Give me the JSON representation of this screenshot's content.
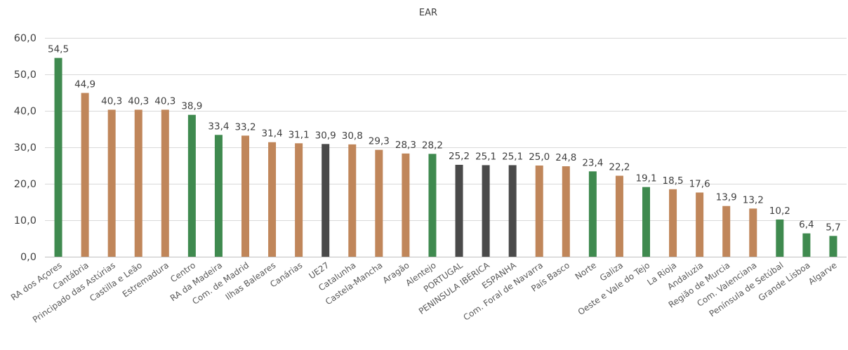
{
  "chart_data": {
    "type": "bar",
    "title": "EAR",
    "xlabel": "",
    "ylabel": "",
    "ylim": [
      0,
      60
    ],
    "yticks": [
      "0,0",
      "10,0",
      "20,0",
      "30,0",
      "40,0",
      "50,0",
      "60,0"
    ],
    "grid": true,
    "legend": "none",
    "colors": {
      "Portugal": "#3f8a4f",
      "Espanha": "#c0865a",
      "Agregado": "#4a4a4a"
    },
    "categories": [
      "RA dos Açores",
      "Cantábria",
      "Principado das Astúrias",
      "Castilla e Leão",
      "Estremadura",
      "Centro",
      "RA da Madeira",
      "Com. de Madrid",
      "Ilhas Baleares",
      "Canárias",
      "UE27",
      "Catalunha",
      "Castela-Mancha",
      "Aragão",
      "Alentejo",
      "PORTUGAL",
      "PENINSULA IBÉRICA",
      "ESPANHA",
      "Com. Foral de Navarra",
      "País Basco",
      "Norte",
      "Galiza",
      "Oeste e Vale do Tejo",
      "La Rioja",
      "Andaluzia",
      "Região de Murcia",
      "Com. Valenciana",
      "Península de Setúbal",
      "Grande Lisboa",
      "Algarve"
    ],
    "values": [
      54.5,
      44.9,
      40.3,
      40.3,
      40.3,
      38.9,
      33.4,
      33.2,
      31.4,
      31.1,
      30.9,
      30.8,
      29.3,
      28.3,
      28.2,
      25.2,
      25.1,
      25.1,
      25.0,
      24.8,
      23.4,
      22.2,
      19.1,
      18.5,
      17.6,
      13.9,
      13.2,
      10.2,
      6.4,
      5.7
    ],
    "value_labels": [
      "54,5",
      "44,9",
      "40,3",
      "40,3",
      "40,3",
      "38,9",
      "33,4",
      "33,2",
      "31,4",
      "31,1",
      "30,9",
      "30,8",
      "29,3",
      "28,3",
      "28,2",
      "25,2",
      "25,1",
      "25,1",
      "25,0",
      "24,8",
      "23,4",
      "22,2",
      "19,1",
      "18,5",
      "17,6",
      "13,9",
      "13,2",
      "10,2",
      "6,4",
      "5,7"
    ],
    "bar_groups": [
      "Portugal",
      "Espanha",
      "Espanha",
      "Espanha",
      "Espanha",
      "Portugal",
      "Portugal",
      "Espanha",
      "Espanha",
      "Espanha",
      "Agregado",
      "Espanha",
      "Espanha",
      "Espanha",
      "Portugal",
      "Agregado",
      "Agregado",
      "Agregado",
      "Espanha",
      "Espanha",
      "Portugal",
      "Espanha",
      "Portugal",
      "Espanha",
      "Espanha",
      "Espanha",
      "Espanha",
      "Portugal",
      "Portugal",
      "Portugal"
    ]
  }
}
